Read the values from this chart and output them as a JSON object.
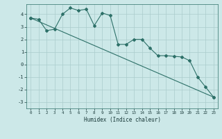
{
  "xlabel": "Humidex (Indice chaleur)",
  "bg_color": "#cce8e8",
  "grid_color": "#aacccc",
  "line_color": "#2d7068",
  "xlim": [
    -0.5,
    23.5
  ],
  "ylim": [
    -3.5,
    4.8
  ],
  "yticks": [
    -3,
    -2,
    -1,
    0,
    1,
    2,
    3,
    4
  ],
  "xticks": [
    0,
    1,
    2,
    3,
    4,
    5,
    6,
    7,
    8,
    9,
    10,
    11,
    12,
    13,
    14,
    15,
    16,
    17,
    18,
    19,
    20,
    21,
    22,
    23
  ],
  "line1_x": [
    0,
    1,
    2,
    3,
    4,
    5,
    6,
    7,
    8,
    9,
    10,
    11,
    12,
    13,
    14,
    15,
    16,
    17,
    18,
    19,
    20,
    21,
    22,
    23
  ],
  "line1_y": [
    3.7,
    3.6,
    2.7,
    2.8,
    4.0,
    4.5,
    4.3,
    4.4,
    3.1,
    4.1,
    3.9,
    1.6,
    1.6,
    2.0,
    2.0,
    1.3,
    0.7,
    0.7,
    0.65,
    0.6,
    0.3,
    -1.0,
    -1.8,
    -2.6
  ],
  "line2_x": [
    0,
    23
  ],
  "line2_y": [
    3.7,
    -2.6
  ]
}
